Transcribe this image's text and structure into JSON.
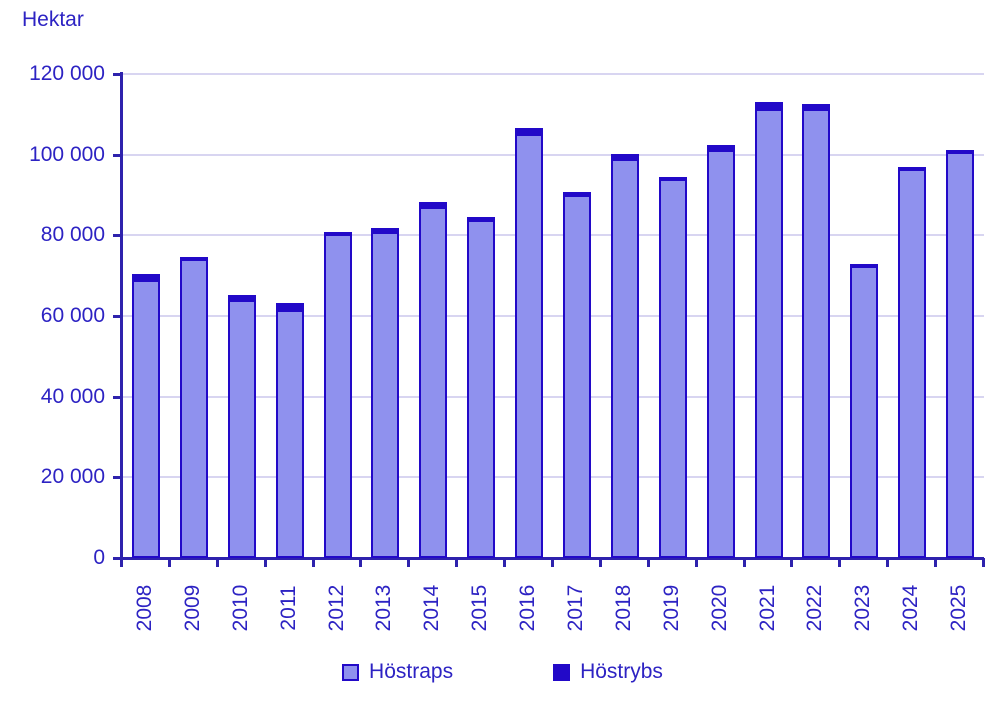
{
  "title": "Hektar",
  "colors": {
    "hostraps_fill": "#8f91ee",
    "hostrybs_fill": "#2209c8",
    "bar_border": "#2209c8",
    "axis": "#2e22ad",
    "gridline": "#d8d5f1",
    "text": "#2d23c3"
  },
  "legend": {
    "items": [
      {
        "label": "Höstraps",
        "swatch": "light"
      },
      {
        "label": "Höstrybs",
        "swatch": "dark"
      }
    ]
  },
  "chart_data": {
    "type": "bar",
    "stacked": true,
    "title": "Hektar",
    "ylabel": "Hektar",
    "xlabel": "",
    "ylim": [
      0,
      120000
    ],
    "ytick_step": 20000,
    "ytick_labels": [
      "0",
      "20 000",
      "40 000",
      "60 000",
      "80 000",
      "100 000",
      "120 000"
    ],
    "grid": true,
    "legend_position": "bottom",
    "categories": [
      "2008",
      "2009",
      "2010",
      "2011",
      "2012",
      "2013",
      "2014",
      "2015",
      "2016",
      "2017",
      "2018",
      "2019",
      "2020",
      "2021",
      "2022",
      "2023",
      "2024",
      "2025"
    ],
    "series": [
      {
        "name": "Höstraps",
        "color": "#8f91ee",
        "values": [
          69000,
          74200,
          63900,
          61400,
          80300,
          80800,
          87000,
          83700,
          105200,
          90000,
          98900,
          94000,
          101200,
          111400,
          111400,
          72400,
          96500,
          100700
        ]
      },
      {
        "name": "Höstrybs",
        "color": "#2209c8",
        "values": [
          1500,
          400,
          1300,
          1700,
          500,
          900,
          1300,
          900,
          1400,
          800,
          1300,
          500,
          1200,
          1700,
          1200,
          500,
          500,
          500
        ]
      }
    ]
  }
}
